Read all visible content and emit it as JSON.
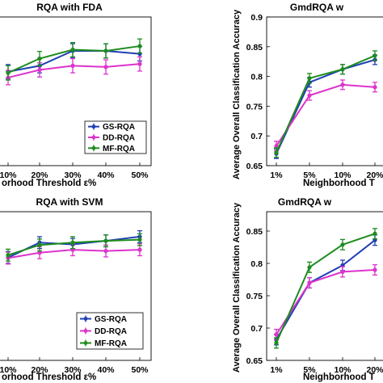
{
  "chart_data": [
    {
      "type": "line",
      "title": "RQA with FDA",
      "xlabel": "orhood Threshold ε%",
      "ylabel": "",
      "categories": [
        "10%",
        "20%",
        "30%",
        "40%",
        "50%"
      ],
      "yticks": [],
      "ylim": [
        0.65,
        0.9
      ],
      "legend": "bottom-right",
      "series": [
        {
          "name": "GS-RQA",
          "color": "#1f3fb4",
          "values": [
            0.808,
            0.818,
            0.843,
            0.843,
            0.838
          ],
          "errors": [
            0.012,
            0.012,
            0.012,
            0.012,
            0.012
          ]
        },
        {
          "name": "DD-RQA",
          "color": "#dd33cc",
          "values": [
            0.798,
            0.811,
            0.818,
            0.816,
            0.821
          ],
          "errors": [
            0.012,
            0.012,
            0.012,
            0.012,
            0.012
          ]
        },
        {
          "name": "MF-RQA",
          "color": "#1e8c1e",
          "values": [
            0.806,
            0.83,
            0.845,
            0.843,
            0.851
          ],
          "errors": [
            0.012,
            0.012,
            0.012,
            0.012,
            0.012
          ]
        }
      ]
    },
    {
      "type": "line",
      "title": "GmdRQA w",
      "xlabel": "Neighborhood T",
      "ylabel": "Average Overall Classification Accuracy",
      "categories": [
        "1%",
        "5%",
        "10%",
        "20%"
      ],
      "yticks": [
        "0.65",
        "0.7",
        "0.75",
        "0.8",
        "0.85",
        "0.9"
      ],
      "ylim": [
        0.65,
        0.9
      ],
      "legend": "",
      "series": [
        {
          "name": "GS-RQA",
          "color": "#1f3fb4",
          "values": [
            0.67,
            0.79,
            0.812,
            0.828
          ],
          "errors": [
            0.008,
            0.008,
            0.008,
            0.008
          ]
        },
        {
          "name": "DD-RQA",
          "color": "#dd33cc",
          "values": [
            0.683,
            0.768,
            0.786,
            0.782
          ],
          "errors": [
            0.008,
            0.008,
            0.008,
            0.008
          ]
        },
        {
          "name": "MF-RQA",
          "color": "#1e8c1e",
          "values": [
            0.672,
            0.797,
            0.812,
            0.835
          ],
          "errors": [
            0.008,
            0.008,
            0.008,
            0.008
          ]
        }
      ]
    },
    {
      "type": "line",
      "title": "RQA with SVM",
      "xlabel": "orhood Threshold ε%",
      "ylabel": "",
      "categories": [
        "10%",
        "20%",
        "30%",
        "40%",
        "50%"
      ],
      "yticks": [],
      "ylim": [
        0.65,
        0.9
      ],
      "legend": "bottom-right",
      "series": [
        {
          "name": "GS-RQA",
          "color": "#1f3fb4",
          "values": [
            0.823,
            0.848,
            0.845,
            0.851,
            0.858
          ],
          "errors": [
            0.01,
            0.01,
            0.01,
            0.01,
            0.01
          ]
        },
        {
          "name": "DD-RQA",
          "color": "#dd33cc",
          "values": [
            0.822,
            0.831,
            0.836,
            0.834,
            0.836
          ],
          "errors": [
            0.01,
            0.01,
            0.01,
            0.01,
            0.01
          ]
        },
        {
          "name": "MF-RQA",
          "color": "#1e8c1e",
          "values": [
            0.827,
            0.844,
            0.848,
            0.851,
            0.853
          ],
          "errors": [
            0.01,
            0.01,
            0.01,
            0.01,
            0.01
          ]
        }
      ]
    },
    {
      "type": "line",
      "title": "GmdRQA w",
      "xlabel": "Neighborhood T",
      "ylabel": "Average Overall Classification Accuracy",
      "categories": [
        "1%",
        "5%",
        "10%",
        "20%"
      ],
      "yticks": [
        "0.65",
        "0.7",
        "0.75",
        "0.8",
        "0.85"
      ],
      "ylim": [
        0.65,
        0.88
      ],
      "legend": "",
      "series": [
        {
          "name": "GS-RQA",
          "color": "#1f3fb4",
          "values": [
            0.682,
            0.77,
            0.797,
            0.836
          ],
          "errors": [
            0.008,
            0.008,
            0.008,
            0.008
          ]
        },
        {
          "name": "DD-RQA",
          "color": "#dd33cc",
          "values": [
            0.69,
            0.77,
            0.787,
            0.79
          ],
          "errors": [
            0.008,
            0.008,
            0.008,
            0.008
          ]
        },
        {
          "name": "MF-RQA",
          "color": "#1e8c1e",
          "values": [
            0.677,
            0.794,
            0.829,
            0.846
          ],
          "errors": [
            0.008,
            0.008,
            0.008,
            0.008
          ]
        }
      ]
    }
  ]
}
